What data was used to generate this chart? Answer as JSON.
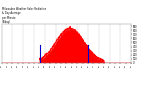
{
  "title_line1": "Milwaukee Weather Solar Radiation",
  "title_line2": "& Day Average",
  "title_line3": "per Minute",
  "title_line4": "(Today)",
  "background_color": "#ffffff",
  "plot_bg_color": "#ffffff",
  "grid_color": "#bbbbbb",
  "bar_color": "#ff0000",
  "line_color": "#0000cc",
  "num_minutes": 1440,
  "peak_minute": 760,
  "peak_value": 850,
  "sunrise_minute": 420,
  "sunset_minute": 1140,
  "blue_line1_minute": 430,
  "blue_line2_minute": 960,
  "ylim": [
    0,
    950
  ],
  "xlim": [
    0,
    1440
  ],
  "sigma": 155
}
